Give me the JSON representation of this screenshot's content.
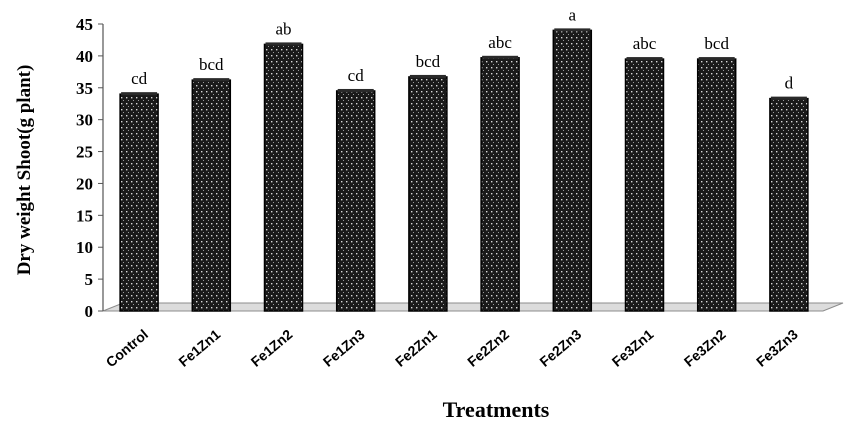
{
  "chart_data": {
    "type": "bar",
    "title": "",
    "xlabel": "Treatments",
    "ylabel": "Dry weight Shoot(g plant)",
    "ylim": [
      0,
      45
    ],
    "yticks": [
      0,
      5,
      10,
      15,
      20,
      25,
      30,
      35,
      40,
      45
    ],
    "grid": false,
    "legend": "none",
    "bar_color": "#1a1a1a",
    "categories": [
      "Control",
      "Fe1Zn1",
      "Fe1Zn2",
      "Fe1Zn3",
      "Fe2Zn1",
      "Fe2Zn2",
      "Fe2Zn3",
      "Fe3Zn1",
      "Fe3Zn2",
      "Fe3Zn3"
    ],
    "values": [
      34.0,
      36.2,
      41.8,
      34.5,
      36.7,
      39.7,
      44.0,
      39.5,
      39.5,
      33.3
    ],
    "annotations": [
      "cd",
      "bcd",
      "ab",
      "cd",
      "bcd",
      "abc",
      "a",
      "abc",
      "bcd",
      "d"
    ]
  }
}
